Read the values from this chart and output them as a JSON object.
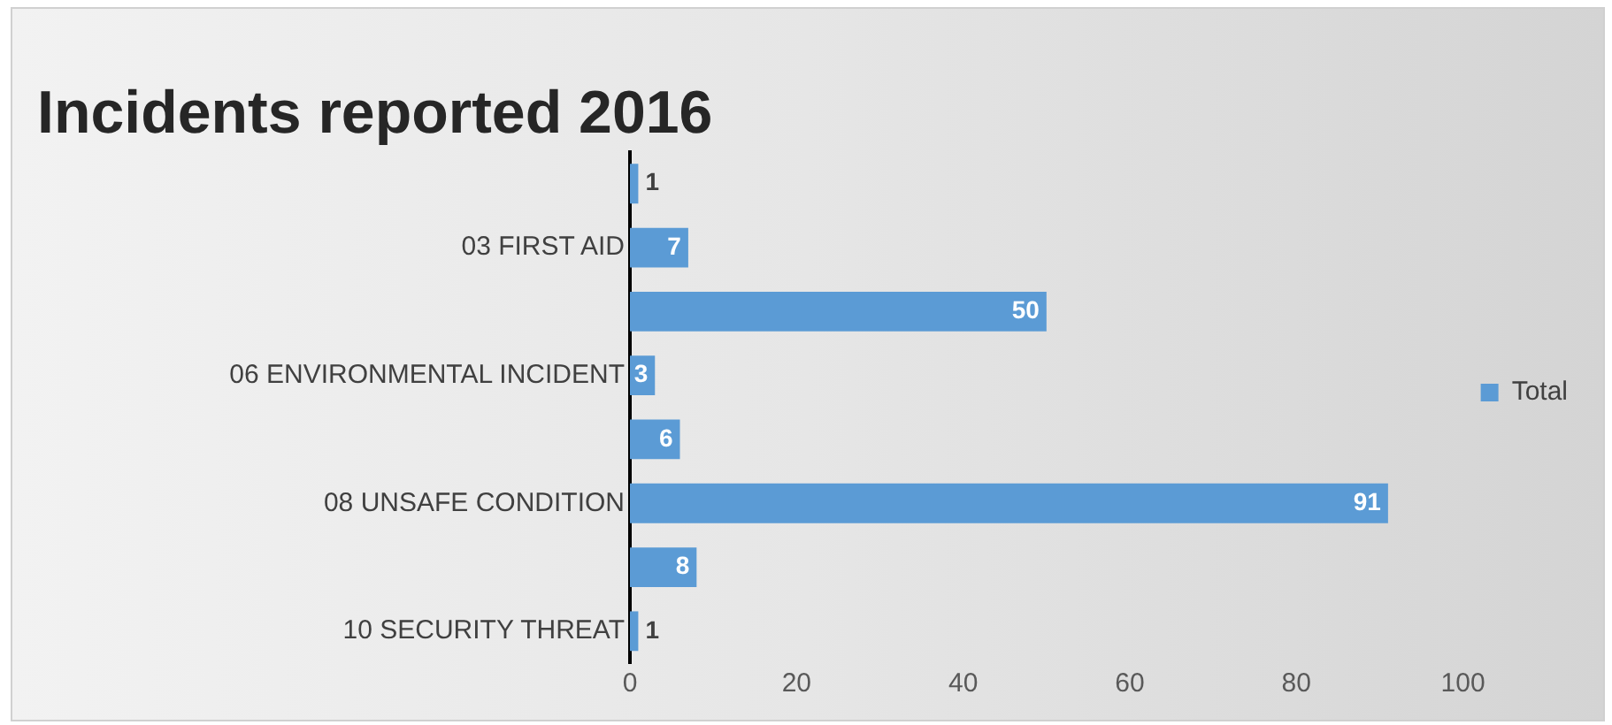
{
  "chart_data": {
    "type": "bar",
    "orientation": "horizontal",
    "title": "Incidents reported 2016",
    "categories": [
      null,
      "03 FIRST AID",
      null,
      "06 ENVIRONMENTAL INCIDENT",
      null,
      "08 UNSAFE CONDITION",
      null,
      "10 SECURITY THREAT"
    ],
    "series": [
      {
        "name": "Total",
        "color": "#5b9bd5",
        "values": [
          1,
          7,
          50,
          3,
          6,
          91,
          8,
          1
        ]
      }
    ],
    "xlim": [
      0,
      100
    ],
    "xticks": [
      0,
      20,
      40,
      60,
      80,
      100
    ],
    "grid": false,
    "legend": "right",
    "data_labels": true
  }
}
